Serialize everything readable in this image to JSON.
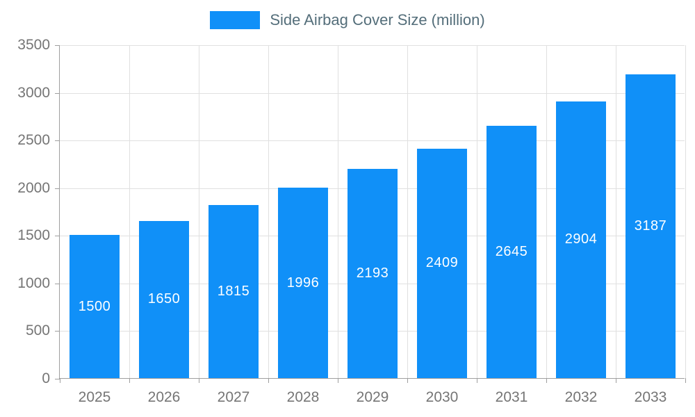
{
  "chart_data": {
    "type": "bar",
    "title": "Side Airbag Cover Size (million)",
    "categories": [
      "2025",
      "2026",
      "2027",
      "2028",
      "2029",
      "2030",
      "2031",
      "2032",
      "2033"
    ],
    "values": [
      1500,
      1650,
      1815,
      1996,
      2193,
      2409,
      2645,
      2904,
      3187
    ],
    "xlabel": "",
    "ylabel": "",
    "ylim": [
      0,
      3500
    ],
    "ytick_step": 500,
    "grid": true,
    "legend_position": "top",
    "colors": {
      "bar": "#1090f8",
      "bar_label": "#ffffff",
      "axis_text": "#757575",
      "legend_text": "#546e7a",
      "gridline": "#e0e0e0",
      "axis_line": "#9e9e9e"
    }
  }
}
